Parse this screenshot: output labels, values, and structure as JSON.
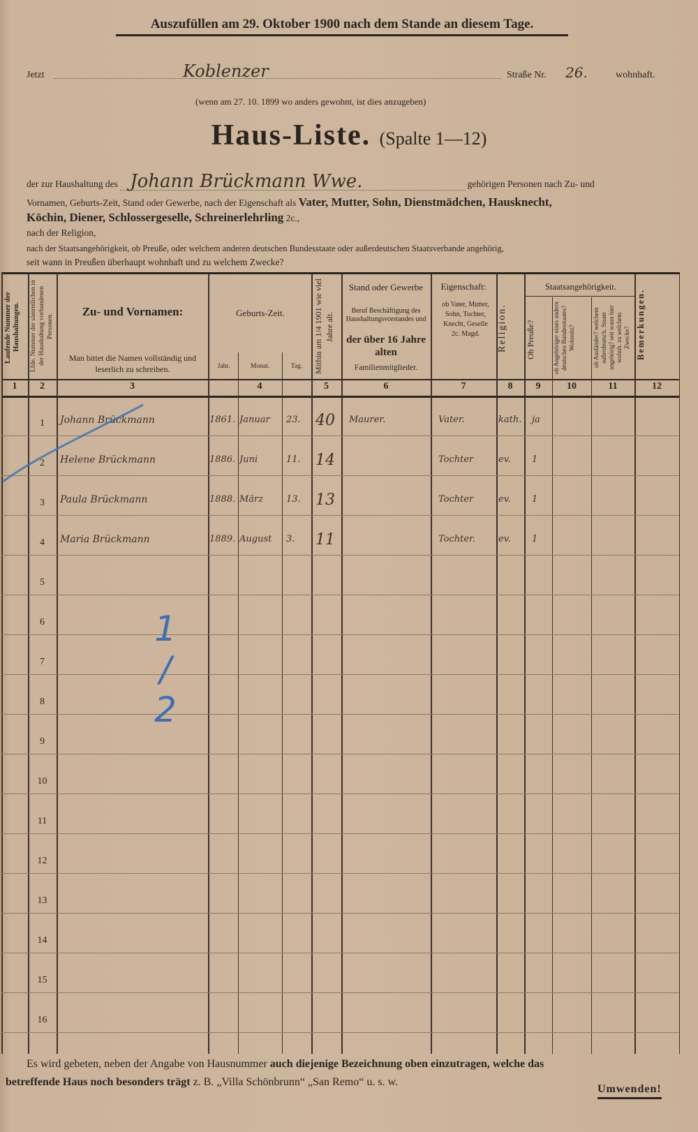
{
  "header": {
    "instruction": "Auszufüllen am 29. Oktober 1900 nach dem Stande an diesem Tage.",
    "now_label": "Jetzt",
    "street_value": "Koblenzer",
    "street_label": "Straße Nr.",
    "house_number": "26.",
    "resident_label": "wohnhaft.",
    "previous_note": "(wenn am 27. 10. 1899 wo anders gewohnt, ist dies anzugeben)"
  },
  "title": {
    "main": "Haus-Liste.",
    "sub": "(Spalte 1—12)"
  },
  "intro": {
    "prefix": "der zur Haushaltung des",
    "head_of_household": "Johann Brückmann Wwe.",
    "suffix": "gehörigen Personen nach Zu- und",
    "line2_plain": "Vornamen, Geburts-Zeit, Stand oder Gewerbe, nach der Eigenschaft als",
    "line2_bold": "Vater, Mutter, Sohn, Dienstmädchen, Hausknecht,",
    "line3_bold": "Köchin, Diener, Schlossergeselle, Schreinerlehrling",
    "line3_plain": "2c.,",
    "line4": "nach der Religion,",
    "line5": "nach der Staatsangehörigkeit, ob Preuße, oder welchem anderen deutschen Bundesstaate oder außerdeutschen Staatsverbande angehörig,",
    "line6": "seit wann in Preußen überhaupt wohnhaft und zu welchem Zwecke?"
  },
  "columns": {
    "c1": "Laufende Nummer der Haushaltungen.",
    "c2": "Lfde. Nummer der sämmtlichen in der Haushaltung vorhandenen Personen.",
    "c3_title": "Zu- und Vornamen:",
    "c3_note": "Man bittet die Namen vollständig und leserlich zu schreiben.",
    "c4_title": "Geburts-Zeit.",
    "c4_year": "Jahr.",
    "c4_month": "Monat.",
    "c4_day": "Tag.",
    "c5": "Mithin am 1/4 1901 wie viel Jahre alt.",
    "c6_title": "Stand oder Gewerbe",
    "c6_note": "Beruf Beschäftigung des Haushaltungsvorstandes und",
    "c6_bold": "der über 16 Jahre alten",
    "c6_end": "Familienmitglieder.",
    "c7_title": "Eigenschaft:",
    "c7_note": "ob Vater, Mutter, Sohn, Tochter, Knecht, Geselle 2c. Magd.",
    "c8": "Religion.",
    "c_state": "Staatsangehörigkeit.",
    "c9": "Ob Preuße?",
    "c10": "ob Angehöriger eines andern deutschen Bundesstaates? Wohnsitz?",
    "c11": "ob Ausländer? welchem außerdeutsch. Staate angehörig? seit wann hier wohnh. zu welchem Zwecke?",
    "c12": "Bemerkungen.",
    "numbers": [
      "1",
      "2",
      "3",
      "4",
      "5",
      "6",
      "7",
      "8",
      "9",
      "10",
      "11",
      "12"
    ]
  },
  "rows": [
    {
      "n": "1",
      "name": "Johann Brückmann",
      "year": "1861.",
      "month": "Januar",
      "day": "23.",
      "age": "40",
      "occupation": "Maurer.",
      "role": "Vater.",
      "religion": "kath.",
      "prussian": "ja"
    },
    {
      "n": "2",
      "name": "Helene Brückmann",
      "year": "1886.",
      "month": "Juni",
      "day": "11.",
      "age": "14",
      "occupation": "",
      "role": "Tochter",
      "religion": "ev.",
      "prussian": "1"
    },
    {
      "n": "3",
      "name": "Paula Brückmann",
      "year": "1888.",
      "month": "März",
      "day": "13.",
      "age": "13",
      "occupation": "",
      "role": "Tochter",
      "religion": "ev.",
      "prussian": "1"
    },
    {
      "n": "4",
      "name": "Maria Brückmann",
      "year": "1889.",
      "month": "August",
      "day": "3.",
      "age": "11",
      "occupation": "",
      "role": "Tochter.",
      "religion": "ev.",
      "prussian": "1"
    },
    {
      "n": "5"
    },
    {
      "n": "6"
    },
    {
      "n": "7"
    },
    {
      "n": "8"
    },
    {
      "n": "9"
    },
    {
      "n": "10"
    },
    {
      "n": "11"
    },
    {
      "n": "12"
    },
    {
      "n": "13"
    },
    {
      "n": "14"
    },
    {
      "n": "15"
    },
    {
      "n": "16"
    }
  ],
  "pencil_annotation": "1 / 2",
  "footer": {
    "plain1": "Es wird gebeten, neben der Angabe von Hausnummer",
    "bold1": "auch diejenige Bezeichnung oben einzutragen, welche das",
    "bold2": "betreffende Haus noch besonders trägt",
    "plain2": "z. B. „Villa Schönbrunn“ „San Remo“ u. s. w.",
    "turn_over": "Umwenden!"
  },
  "colors": {
    "paper": "#cdb69d",
    "ink": "#2a2420",
    "pencil": "#3f6fb0"
  }
}
